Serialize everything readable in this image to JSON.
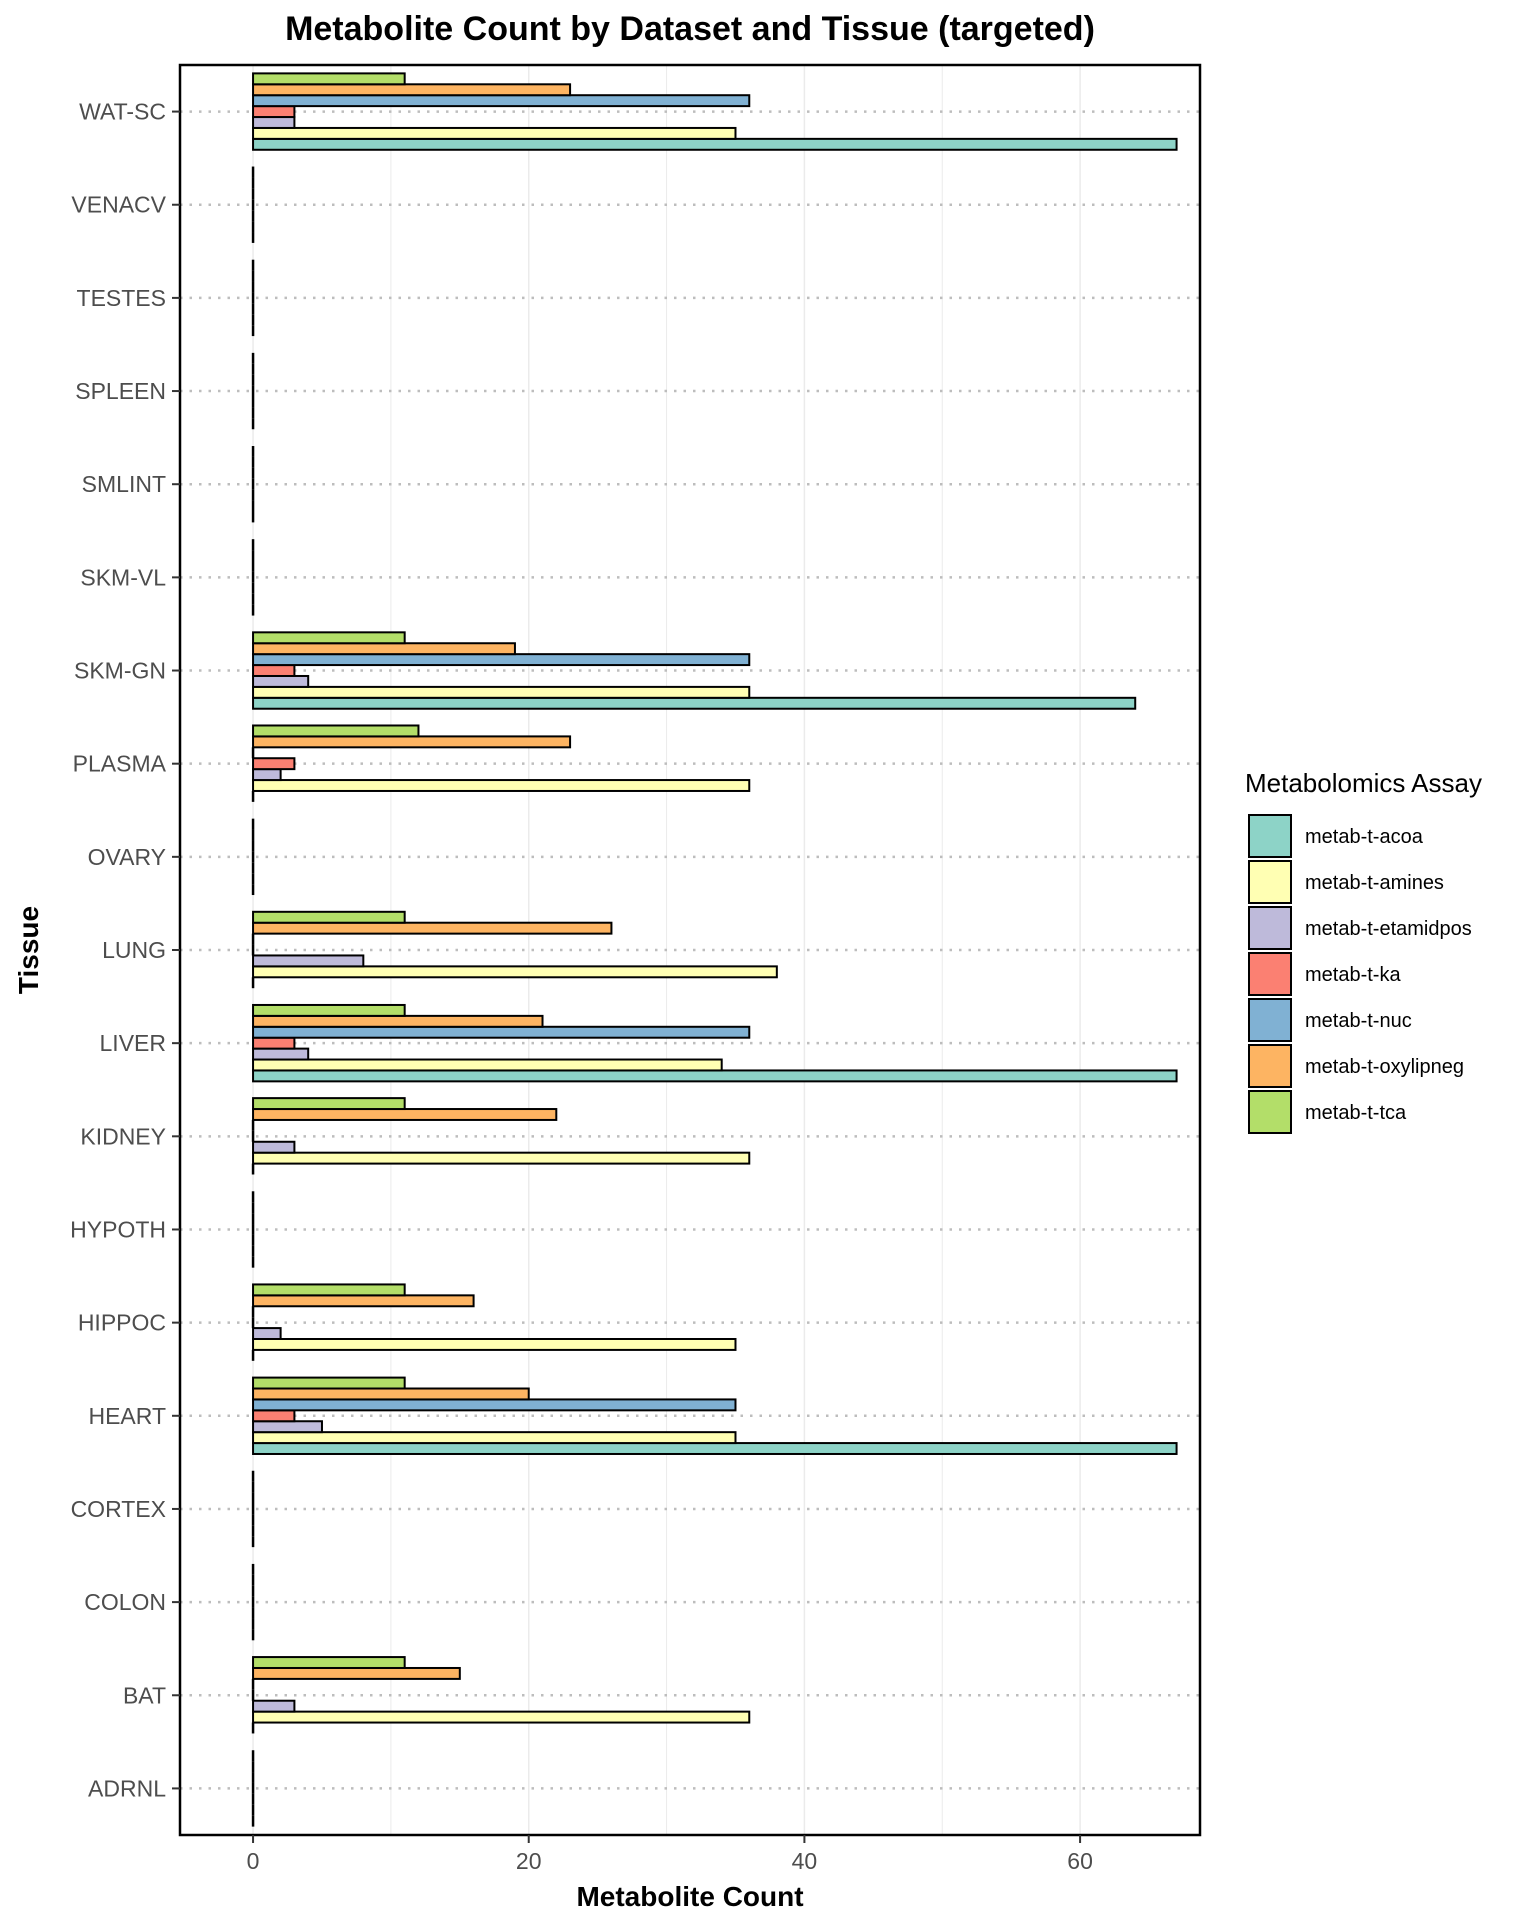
{
  "chart_data": {
    "type": "bar",
    "orientation": "horizontal",
    "title": "Metabolite Count by Dataset and Tissue (targeted)",
    "xlabel": "Metabolite Count",
    "ylabel": "Tissue",
    "xlim": [
      -5.3,
      68.7
    ],
    "xticks": [
      0,
      20,
      40,
      60
    ],
    "grid": "vertical major and minor lines, dotted horizontal lines at each tissue",
    "legend_title": "Metabolomics Assay",
    "legend_position": "right",
    "categories": [
      "ADRNL",
      "BAT",
      "COLON",
      "CORTEX",
      "HEART",
      "HIPPOC",
      "HYPOTH",
      "KIDNEY",
      "LIVER",
      "LUNG",
      "OVARY",
      "PLASMA",
      "SKM-GN",
      "SKM-VL",
      "SMLINT",
      "SPLEEN",
      "TESTES",
      "VENACV",
      "WAT-SC"
    ],
    "series": [
      {
        "name": "metab-t-acoa",
        "color": "#8dd3c7",
        "values": [
          0,
          0,
          0,
          0,
          67,
          0,
          0,
          0,
          67,
          0,
          0,
          0,
          64,
          0,
          0,
          0,
          0,
          0,
          67
        ]
      },
      {
        "name": "metab-t-amines",
        "color": "#ffffb3",
        "values": [
          0,
          36,
          0,
          0,
          35,
          35,
          0,
          36,
          34,
          38,
          0,
          36,
          36,
          0,
          0,
          0,
          0,
          0,
          35
        ]
      },
      {
        "name": "metab-t-etamidpos",
        "color": "#bebada",
        "values": [
          0,
          3,
          0,
          0,
          5,
          2,
          0,
          3,
          4,
          8,
          0,
          2,
          4,
          0,
          0,
          0,
          0,
          0,
          3
        ]
      },
      {
        "name": "metab-t-ka",
        "color": "#fb8072",
        "values": [
          0,
          0,
          0,
          0,
          3,
          0,
          0,
          0,
          3,
          0,
          0,
          3,
          3,
          0,
          0,
          0,
          0,
          0,
          3
        ]
      },
      {
        "name": "metab-t-nuc",
        "color": "#80b1d3",
        "values": [
          0,
          0,
          0,
          0,
          35,
          0,
          0,
          0,
          36,
          0,
          0,
          0,
          36,
          0,
          0,
          0,
          0,
          0,
          36
        ]
      },
      {
        "name": "metab-t-oxylipneg",
        "color": "#fdb462",
        "values": [
          0,
          15,
          0,
          0,
          20,
          16,
          0,
          22,
          21,
          26,
          0,
          23,
          19,
          0,
          0,
          0,
          0,
          0,
          23
        ]
      },
      {
        "name": "metab-t-tca",
        "color": "#b3de69",
        "values": [
          0,
          11,
          0,
          0,
          11,
          11,
          0,
          11,
          11,
          11,
          0,
          12,
          11,
          0,
          0,
          0,
          0,
          0,
          11
        ]
      }
    ]
  }
}
